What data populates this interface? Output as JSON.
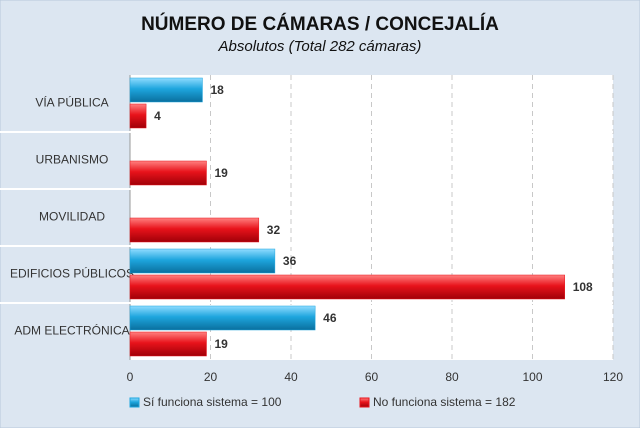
{
  "chart_data": {
    "type": "hbar",
    "title": "NÚMERO DE CÁMARAS / CONCEJALÍA",
    "subtitle": "Absolutos (Total 282 cámaras)",
    "categories": [
      "VÍA PÚBLICA",
      "URBANISMO",
      "MOVILIDAD",
      "EDIFICIOS PÚBLICOS",
      "ADM ELECTRÓNICA"
    ],
    "series": [
      {
        "name": "Sí funciona sistema = 100",
        "color": "#1ea6de",
        "label_color": "#1a96c8",
        "values": [
          18,
          null,
          null,
          36,
          46
        ]
      },
      {
        "name": "No funciona sistema = 182",
        "color": "#e8131b",
        "label_color": "#b3161c",
        "values": [
          4,
          19,
          32,
          108,
          19
        ]
      }
    ],
    "xlim": [
      0,
      120
    ],
    "xticks": [
      0,
      20,
      40,
      60,
      80,
      100,
      120
    ],
    "grid": true,
    "legend": "bottom"
  }
}
